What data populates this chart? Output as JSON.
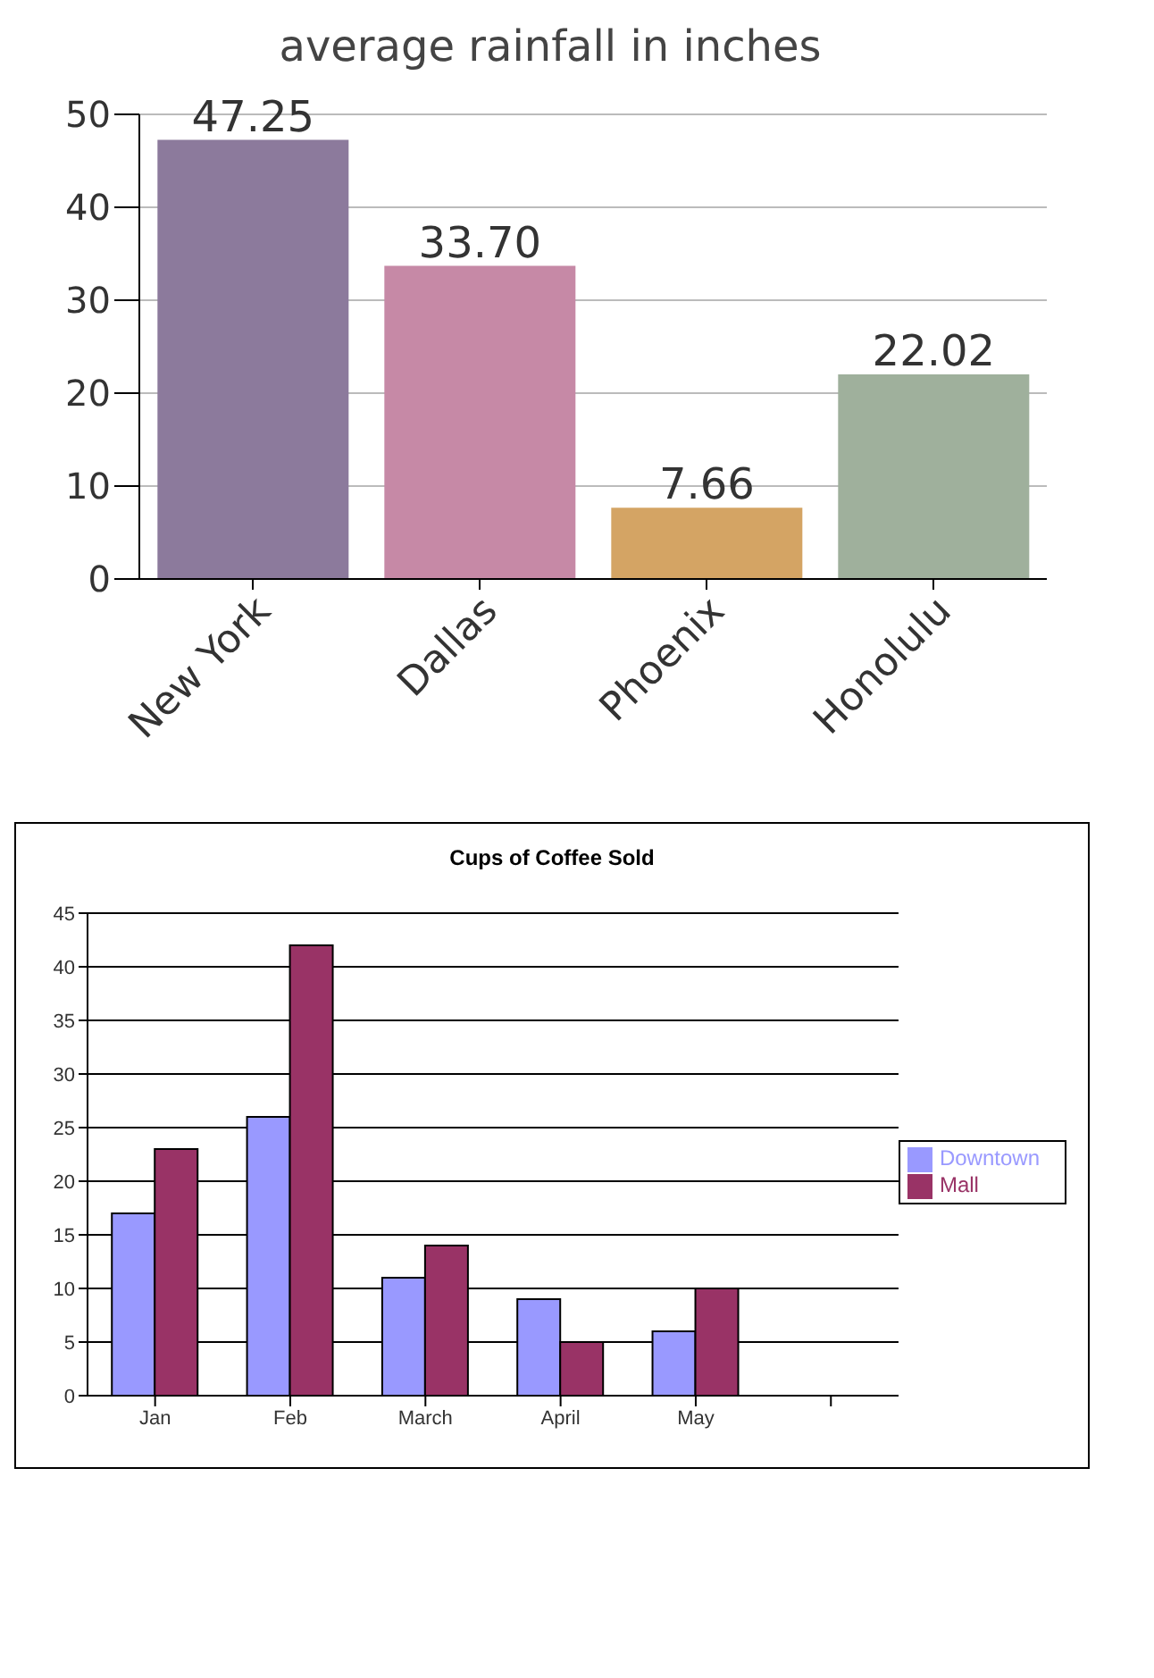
{
  "chart_data": [
    {
      "type": "bar",
      "title": "average rainfall in inches",
      "categories": [
        "New York",
        "Dallas",
        "Phoenix",
        "Honolulu"
      ],
      "values": [
        47.25,
        33.7,
        7.66,
        22.02
      ],
      "colors": [
        "#8c7a9c",
        "#c689a6",
        "#d4a464",
        "#9fb09c"
      ],
      "value_labels": [
        "47.25",
        "33.70",
        "7.66",
        "22.02"
      ],
      "ylim": [
        0,
        50
      ],
      "yticks": [
        0,
        10,
        20,
        30,
        40,
        50
      ],
      "grid": "y",
      "legend": false
    },
    {
      "type": "bar",
      "title": "Cups of Coffee Sold",
      "categories": [
        "Jan",
        "Feb",
        "March",
        "April",
        "May",
        null
      ],
      "series": [
        {
          "name": "Downtown",
          "color": "#9999ff",
          "values": [
            17,
            26,
            11,
            9,
            6,
            null
          ]
        },
        {
          "name": "Mall",
          "color": "#993366",
          "values": [
            23,
            42,
            14,
            5,
            10,
            null
          ]
        }
      ],
      "ylim": [
        0,
        45
      ],
      "yticks": [
        0,
        5,
        10,
        15,
        20,
        25,
        30,
        35,
        40,
        45
      ],
      "grid": "y",
      "legend": "right"
    }
  ]
}
